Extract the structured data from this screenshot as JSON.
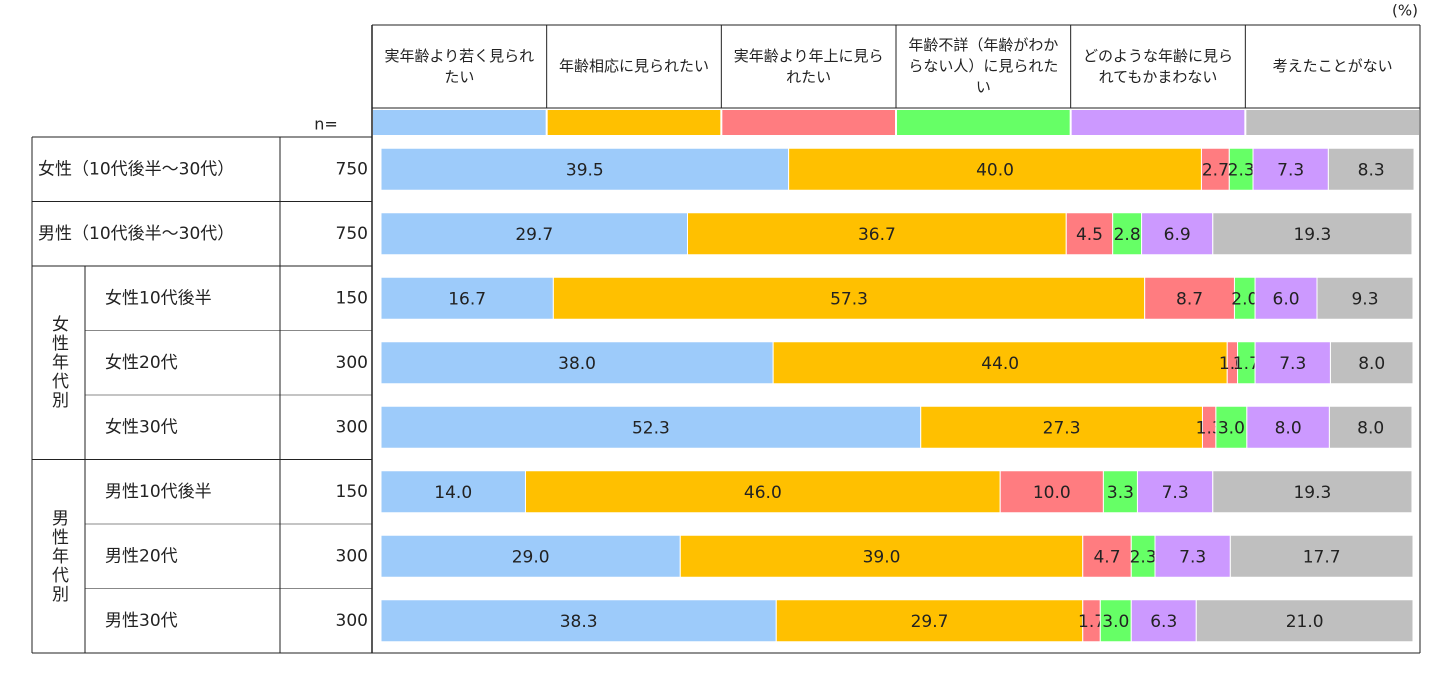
{
  "chart_data": {
    "type": "bar",
    "orientation": "horizontal",
    "stacked": true,
    "unit": "(%)",
    "n_header": "n=",
    "xlim": [
      0,
      100
    ],
    "categories": [
      "女性（10代後半～30代）",
      "男性（10代後半～30代）",
      "女性10代後半",
      "女性20代",
      "女性30代",
      "男性10代後半",
      "男性20代",
      "男性30代"
    ],
    "category_groups": [
      null,
      null,
      "女性年代別",
      "女性年代別",
      "女性年代別",
      "男性年代別",
      "男性年代別",
      "男性年代別"
    ],
    "n": [
      750,
      750,
      150,
      300,
      300,
      150,
      300,
      300
    ],
    "series": [
      {
        "name": "実年齢より若く見られたい",
        "color": "#9dcbfa",
        "values": [
          39.5,
          29.7,
          16.7,
          38.0,
          52.3,
          14.0,
          29.0,
          38.3
        ],
        "value_labels": [
          "39.5",
          "29.7",
          "16.7",
          "38.0",
          "52.3",
          "14.0",
          "29.0",
          "38.3"
        ]
      },
      {
        "name": "年齢相応に見られたい",
        "color": "#ffc000",
        "values": [
          40.0,
          36.7,
          57.3,
          44.0,
          27.3,
          46.0,
          39.0,
          29.7
        ],
        "value_labels": [
          "40.0",
          "36.7",
          "57.3",
          "44.0",
          "27.3",
          "46.0",
          "39.0",
          "29.7"
        ]
      },
      {
        "name": "実年齢より年上に見られたい",
        "color": "#ff7c80",
        "values": [
          2.7,
          4.5,
          8.7,
          1.0,
          1.3,
          10.0,
          4.7,
          1.7
        ],
        "value_labels": [
          "2.7",
          "4.5",
          "8.7",
          "1.0",
          "1.3",
          "10.0",
          "4.7",
          "1.7"
        ]
      },
      {
        "name": "年齢不詳（年齢がわからない人）に見られたい",
        "color": "#66ff66",
        "values": [
          2.3,
          2.8,
          2.0,
          1.7,
          3.0,
          3.3,
          2.3,
          3.0
        ],
        "value_labels": [
          "2.3",
          "2.8",
          "2.0",
          "1.7",
          "3.0",
          "3.3",
          "2.3",
          "3.0"
        ]
      },
      {
        "name": "どのような年齢に見られてもかまわない",
        "color": "#cc99ff",
        "values": [
          7.3,
          6.9,
          6.0,
          7.3,
          8.0,
          7.3,
          7.3,
          6.3
        ],
        "value_labels": [
          "7.3",
          "6.9",
          "6.0",
          "7.3",
          "8.0",
          "7.3",
          "7.3",
          "6.3"
        ]
      },
      {
        "name": "考えたことがない",
        "color": "#bfbfbf",
        "values": [
          8.3,
          19.3,
          9.3,
          8.0,
          8.0,
          19.3,
          17.7,
          21.0
        ],
        "value_labels": [
          "8.3",
          "19.3",
          "9.3",
          "8.0",
          "8.0",
          "19.3",
          "17.7",
          "21.0"
        ]
      }
    ]
  }
}
